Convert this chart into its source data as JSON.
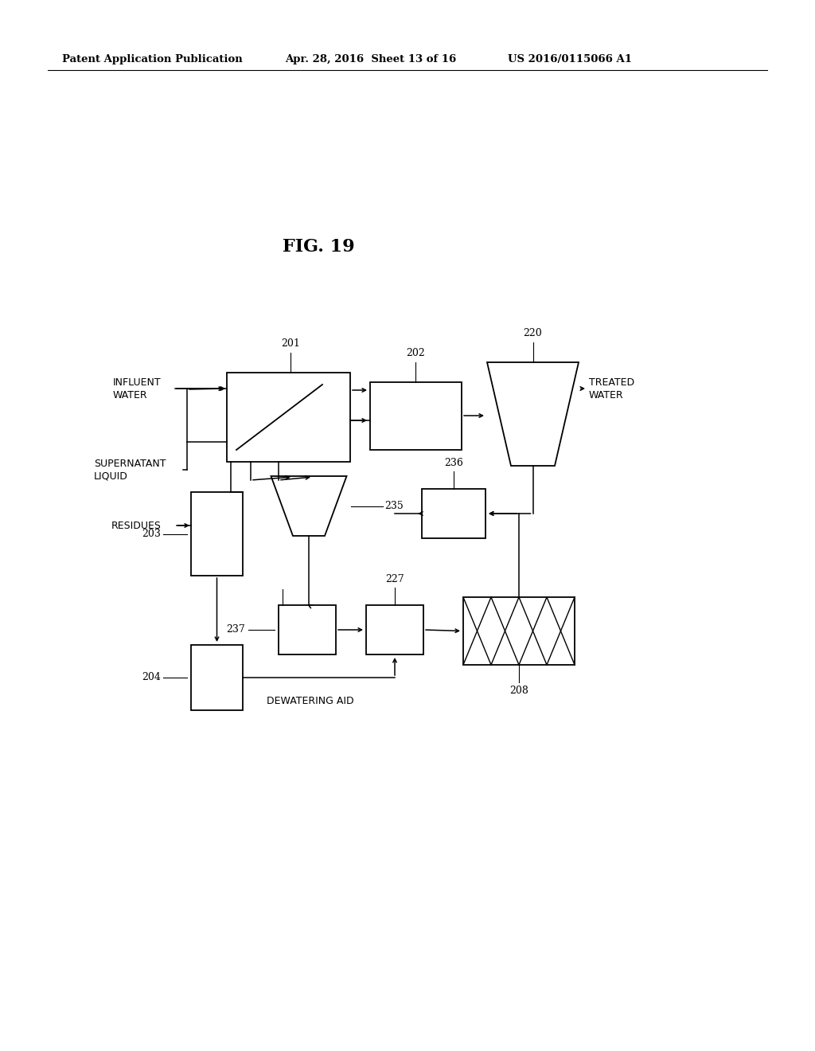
{
  "title": "FIG. 19",
  "header_left": "Patent Application Publication",
  "header_mid": "Apr. 28, 2016  Sheet 13 of 16",
  "header_right": "US 2016/0115066 A1",
  "bg_color": "#ffffff",
  "text_color": "#000000"
}
